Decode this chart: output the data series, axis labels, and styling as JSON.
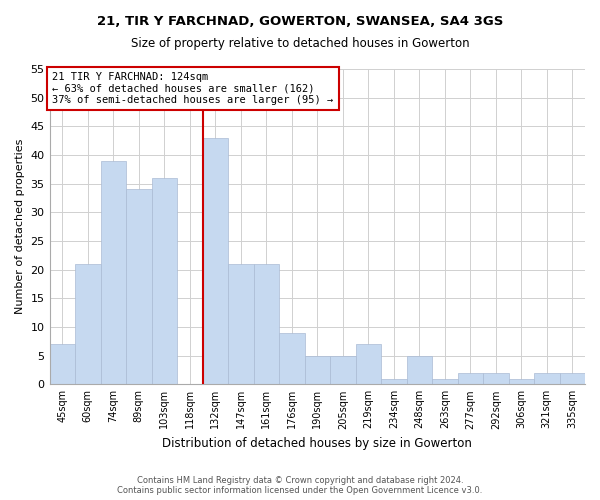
{
  "title1": "21, TIR Y FARCHNAD, GOWERTON, SWANSEA, SA4 3GS",
  "title2": "Size of property relative to detached houses in Gowerton",
  "xlabel": "Distribution of detached houses by size in Gowerton",
  "ylabel": "Number of detached properties",
  "footnote": "Contains HM Land Registry data © Crown copyright and database right 2024.\nContains public sector information licensed under the Open Government Licence v3.0.",
  "categories": [
    "45sqm",
    "60sqm",
    "74sqm",
    "89sqm",
    "103sqm",
    "118sqm",
    "132sqm",
    "147sqm",
    "161sqm",
    "176sqm",
    "190sqm",
    "205sqm",
    "219sqm",
    "234sqm",
    "248sqm",
    "263sqm",
    "277sqm",
    "292sqm",
    "306sqm",
    "321sqm",
    "335sqm"
  ],
  "values": [
    7,
    21,
    39,
    34,
    36,
    0,
    43,
    21,
    21,
    9,
    5,
    5,
    7,
    1,
    5,
    1,
    2,
    2,
    1,
    2,
    2
  ],
  "bar_color": "#c6d9f0",
  "vline_index": 6,
  "annotation_line1": "21 TIR Y FARCHNAD: 124sqm",
  "annotation_line2": "← 63% of detached houses are smaller (162)",
  "annotation_line3": "37% of semi-detached houses are larger (95) →",
  "annotation_box_color": "#ffffff",
  "annotation_box_edgecolor": "#cc0000",
  "vline_color": "#cc0000",
  "ylim": [
    0,
    55
  ],
  "yticks": [
    0,
    5,
    10,
    15,
    20,
    25,
    30,
    35,
    40,
    45,
    50,
    55
  ],
  "background_color": "#ffffff",
  "grid_color": "#d0d0d0"
}
